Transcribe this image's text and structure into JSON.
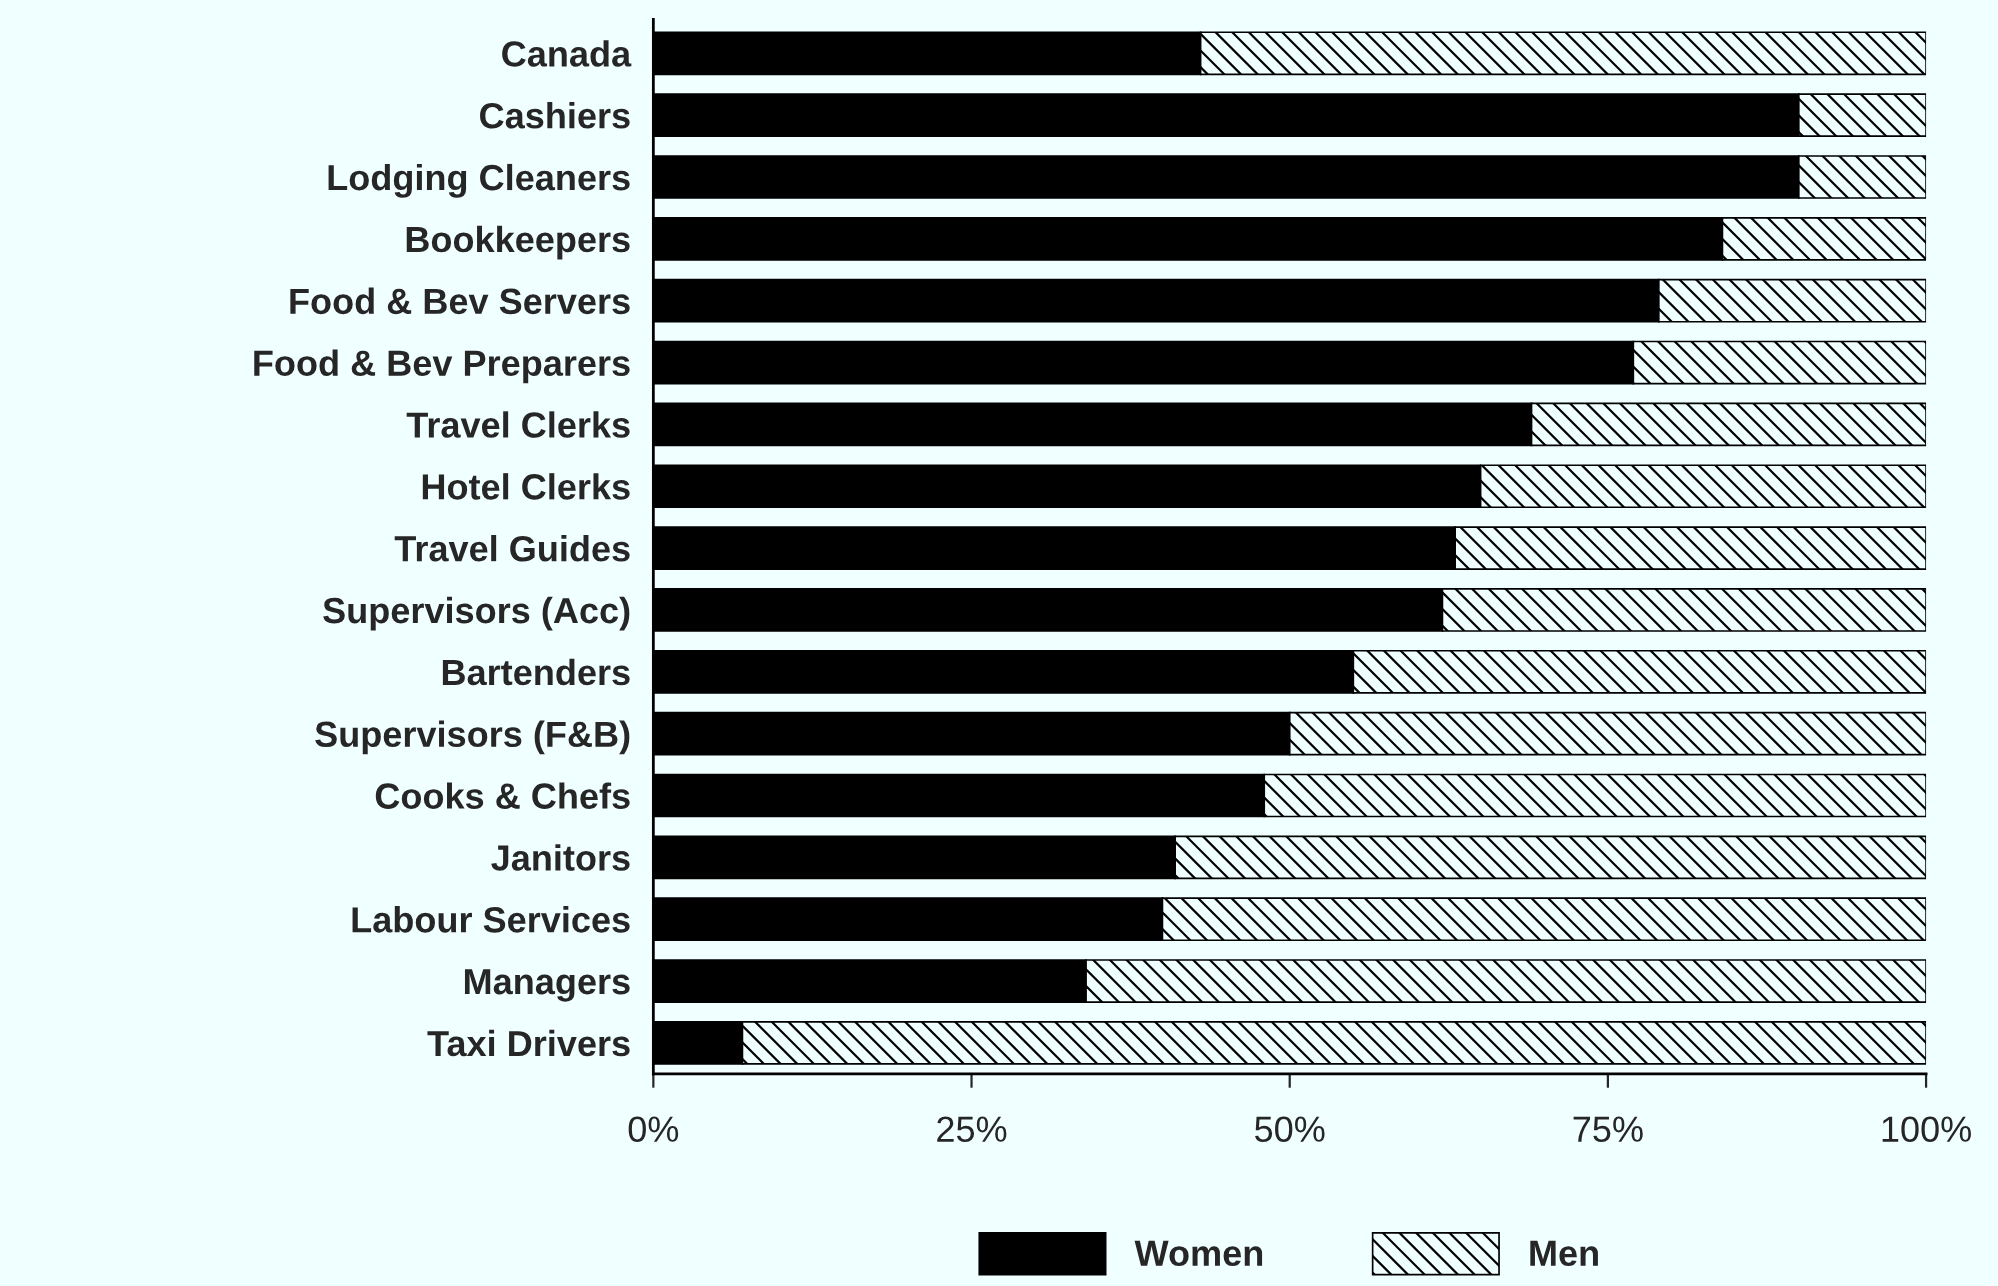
{
  "chart_data": {
    "type": "bar",
    "orientation": "horizontal",
    "stacked": true,
    "categories": [
      "Canada",
      "Cashiers",
      "Lodging Cleaners",
      "Bookkeepers",
      "Food & Bev Servers",
      "Food & Bev Preparers",
      "Travel Clerks",
      "Hotel Clerks",
      "Travel Guides",
      "Supervisors (Acc)",
      "Bartenders",
      "Supervisors (F&B)",
      "Cooks & Chefs",
      "Janitors",
      "Labour Services",
      "Managers",
      "Taxi Drivers"
    ],
    "series": [
      {
        "name": "Women",
        "color": "#000000",
        "values": [
          43,
          90,
          90,
          84,
          79,
          77,
          69,
          65,
          63,
          62,
          55,
          50,
          48,
          41,
          40,
          34,
          7
        ]
      },
      {
        "name": "Men",
        "color": "#000000",
        "values": [
          57,
          10,
          10,
          16,
          21,
          23,
          31,
          35,
          37,
          38,
          45,
          50,
          52,
          59,
          60,
          66,
          93
        ]
      }
    ],
    "xlim": [
      0,
      100
    ],
    "xticks": [
      {
        "value": 0,
        "label": "0%"
      },
      {
        "value": 25,
        "label": "25%"
      },
      {
        "value": 50,
        "label": "50%"
      },
      {
        "value": 75,
        "label": "75%"
      },
      {
        "value": 100,
        "label": "100%"
      }
    ],
    "grid": false,
    "legend": "bottom"
  }
}
